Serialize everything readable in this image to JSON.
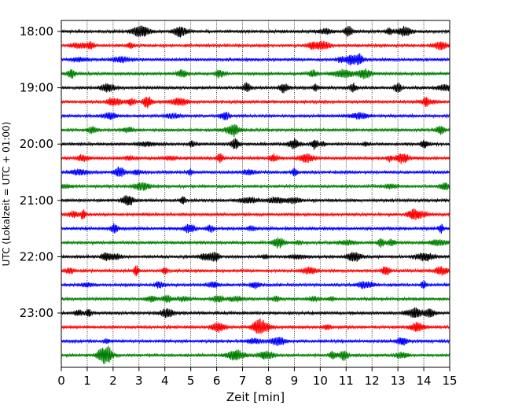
{
  "chart_data": {
    "type": "line",
    "title": "",
    "xlabel": "Zeit  [min]",
    "ylabel": "UTC (Lokalzeit = UTC + 01:00)",
    "xlim": [
      0,
      15
    ],
    "x_ticks": [
      "0",
      "1",
      "2",
      "3",
      "4",
      "5",
      "6",
      "7",
      "8",
      "9",
      "10",
      "11",
      "12",
      "13",
      "14",
      "15"
    ],
    "y_tick_labels": [
      "18:00",
      "19:00",
      "20:00",
      "21:00",
      "22:00",
      "23:00"
    ],
    "trace_interval_minutes": 15,
    "trace_count": 24,
    "trace_colors": [
      "#000000",
      "#ff0000",
      "#0000ff",
      "#008000"
    ],
    "grid": "vertical dotted lines at each minute",
    "legend": "none"
  }
}
